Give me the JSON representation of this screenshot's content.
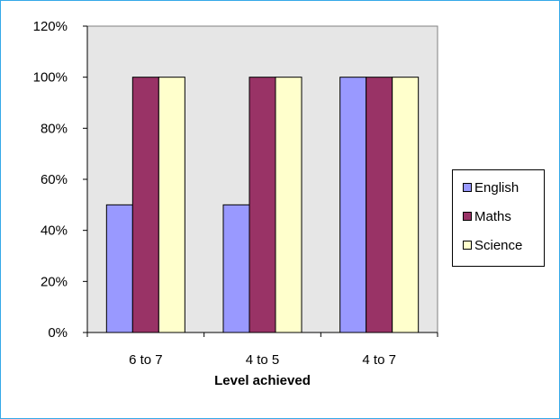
{
  "chart_data": {
    "type": "bar",
    "categories": [
      "6 to 7",
      "4 to 5",
      "4 to 7"
    ],
    "series": [
      {
        "name": "English",
        "values": [
          50,
          50,
          100
        ],
        "color": "#9999ff"
      },
      {
        "name": "Maths",
        "values": [
          100,
          100,
          100
        ],
        "color": "#993366"
      },
      {
        "name": "Science",
        "values": [
          100,
          100,
          100
        ],
        "color": "#ffffcc"
      }
    ],
    "title": "",
    "xlabel": "Level achieved",
    "ylabel": "",
    "ylim": [
      0,
      120
    ],
    "yticks": [
      "0%",
      "20%",
      "40%",
      "60%",
      "80%",
      "100%",
      "120%"
    ],
    "ytick_values": [
      0,
      20,
      40,
      60,
      80,
      100,
      120
    ],
    "legend_position": "right",
    "plot_background": "#e6e6e6",
    "grid": false
  }
}
